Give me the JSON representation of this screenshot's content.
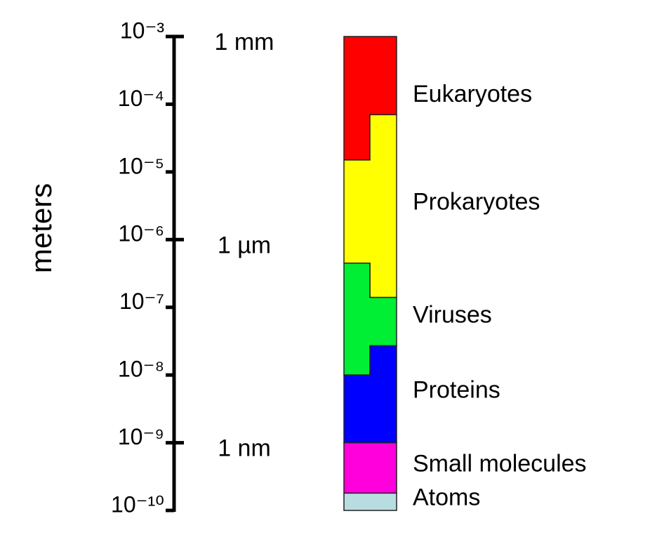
{
  "chart_data": {
    "type": "size-scale",
    "y_label": "meters",
    "log": true,
    "ylim": [
      1e-10,
      0.001
    ],
    "yticks": [
      {
        "value": 0.001,
        "label": "10⁻³"
      },
      {
        "value": 0.0001,
        "label": "10⁻⁴"
      },
      {
        "value": 1e-05,
        "label": "10⁻⁵"
      },
      {
        "value": 1e-06,
        "label": "10⁻⁶"
      },
      {
        "value": 1e-07,
        "label": "10⁻⁷"
      },
      {
        "value": 1e-08,
        "label": "10⁻⁸"
      },
      {
        "value": 1e-09,
        "label": "10⁻⁹"
      },
      {
        "value": 1e-10,
        "label": "10⁻¹⁰"
      }
    ],
    "unit_labels": [
      {
        "value": 0.001,
        "label": "1 mm"
      },
      {
        "value": 1e-06,
        "label": "1 µm"
      },
      {
        "value": 1e-09,
        "label": "1 nm"
      }
    ],
    "series": [
      {
        "name": "Eukaryotes",
        "color": "#ff0000",
        "left": [
          1.5e-05,
          0.001
        ],
        "right": [
          7e-05,
          0.001
        ]
      },
      {
        "name": "Prokaryotes",
        "color": "#ffff00",
        "left": [
          4.5e-07,
          1.5e-05
        ],
        "right": [
          1.4e-07,
          7e-05
        ]
      },
      {
        "name": "Viruses",
        "color": "#00ee33",
        "left": [
          1e-08,
          4.5e-07
        ],
        "right": [
          2.7e-08,
          1.4e-07
        ]
      },
      {
        "name": "Proteins",
        "color": "#0000ff",
        "left": [
          1e-09,
          1e-08
        ],
        "right": [
          1e-09,
          2.7e-08
        ]
      },
      {
        "name": "Small molecules",
        "color": "#ff00dd",
        "left": [
          1.8e-10,
          1e-09
        ],
        "right": [
          1.8e-10,
          1e-09
        ]
      },
      {
        "name": "Atoms",
        "color": "#b8dde0",
        "left": [
          1e-10,
          1.8e-10
        ],
        "right": [
          1e-10,
          1.8e-10
        ]
      }
    ]
  }
}
